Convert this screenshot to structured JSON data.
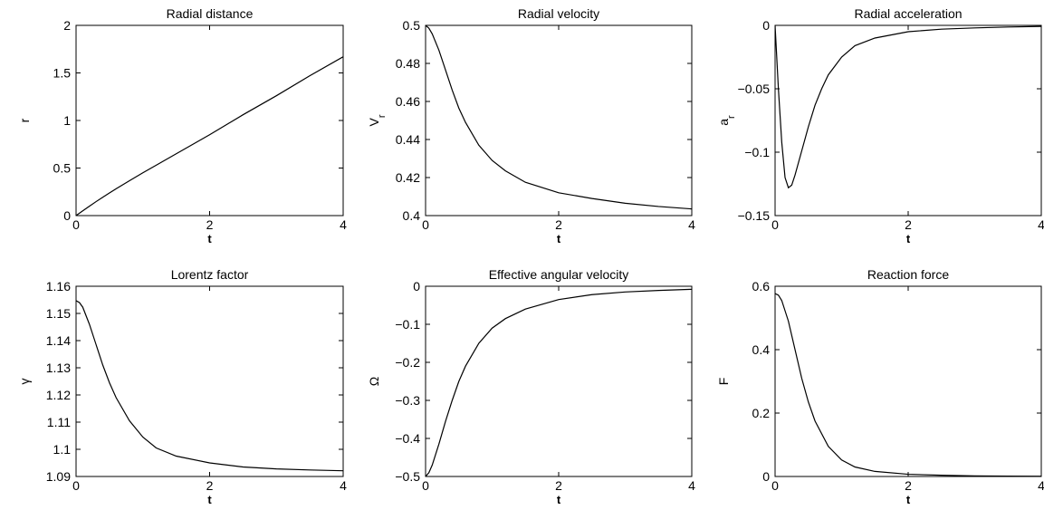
{
  "chart_data": [
    {
      "type": "line",
      "title": "Radial distance",
      "xlabel": "t",
      "ylabel": "r",
      "ylabel_sub": "",
      "xlim": [
        0,
        4
      ],
      "ylim": [
        0,
        2
      ],
      "xticks": [
        0,
        2,
        4
      ],
      "xtick_labels": [
        "0",
        "2",
        "4"
      ],
      "yticks": [
        0,
        0.5,
        1,
        1.5,
        2
      ],
      "ytick_labels": [
        "0",
        "0.5",
        "1",
        "1.5",
        "2"
      ],
      "grid": false,
      "series": [
        {
          "x": [
            0,
            0.1,
            0.2,
            0.3,
            0.4,
            0.5,
            0.6,
            0.8,
            1.0,
            1.2,
            1.5,
            2.0,
            2.5,
            3.0,
            3.5,
            4.0
          ],
          "y": [
            0,
            0.05,
            0.099,
            0.147,
            0.193,
            0.238,
            0.282,
            0.367,
            0.45,
            0.53,
            0.65,
            0.85,
            1.06,
            1.26,
            1.47,
            1.67
          ]
        }
      ]
    },
    {
      "type": "line",
      "title": "Radial velocity",
      "xlabel": "t",
      "ylabel": "V",
      "ylabel_sub": "r",
      "xlim": [
        0,
        4
      ],
      "ylim": [
        0.4,
        0.5
      ],
      "xticks": [
        0,
        2,
        4
      ],
      "xtick_labels": [
        "0",
        "2",
        "4"
      ],
      "yticks": [
        0.4,
        0.42,
        0.44,
        0.46,
        0.48,
        0.5
      ],
      "ytick_labels": [
        "0.4",
        "0.42",
        "0.44",
        "0.46",
        "0.48",
        "0.5"
      ],
      "grid": false,
      "series": [
        {
          "x": [
            0,
            0.05,
            0.1,
            0.2,
            0.3,
            0.4,
            0.5,
            0.6,
            0.8,
            1.0,
            1.2,
            1.5,
            2.0,
            2.5,
            3.0,
            3.5,
            4.0
          ],
          "y": [
            0.5,
            0.4985,
            0.4955,
            0.487,
            0.4765,
            0.466,
            0.4565,
            0.449,
            0.437,
            0.429,
            0.4235,
            0.4175,
            0.412,
            0.409,
            0.4065,
            0.4048,
            0.4035
          ]
        }
      ]
    },
    {
      "type": "line",
      "title": "Radial acceleration",
      "xlabel": "t",
      "ylabel": "a",
      "ylabel_sub": "r",
      "xlim": [
        0,
        4
      ],
      "ylim": [
        -0.15,
        0
      ],
      "xticks": [
        0,
        2,
        4
      ],
      "xtick_labels": [
        "0",
        "2",
        "4"
      ],
      "yticks": [
        -0.15,
        -0.1,
        -0.05,
        0
      ],
      "ytick_labels": [
        "−0.15",
        "−0.1",
        "−0.05",
        "0"
      ],
      "grid": false,
      "series": [
        {
          "x": [
            0,
            0.05,
            0.1,
            0.15,
            0.2,
            0.25,
            0.3,
            0.4,
            0.5,
            0.6,
            0.7,
            0.8,
            1.0,
            1.2,
            1.5,
            2.0,
            2.5,
            3.0,
            3.5,
            4.0
          ],
          "y": [
            0,
            -0.05,
            -0.092,
            -0.12,
            -0.128,
            -0.126,
            -0.118,
            -0.099,
            -0.08,
            -0.063,
            -0.05,
            -0.039,
            -0.025,
            -0.016,
            -0.01,
            -0.005,
            -0.003,
            -0.002,
            -0.0013,
            -0.0008
          ]
        }
      ]
    },
    {
      "type": "line",
      "title": "Lorentz factor",
      "xlabel": "t",
      "ylabel": "γ",
      "ylabel_sub": "",
      "xlim": [
        0,
        4
      ],
      "ylim": [
        1.09,
        1.16
      ],
      "xticks": [
        0,
        2,
        4
      ],
      "xtick_labels": [
        "0",
        "2",
        "4"
      ],
      "yticks": [
        1.09,
        1.1,
        1.11,
        1.12,
        1.13,
        1.14,
        1.15,
        1.16
      ],
      "ytick_labels": [
        "1.09",
        "1.1",
        "1.11",
        "1.12",
        "1.13",
        "1.14",
        "1.15",
        "1.16"
      ],
      "grid": false,
      "series": [
        {
          "x": [
            0,
            0.05,
            0.1,
            0.2,
            0.3,
            0.4,
            0.5,
            0.6,
            0.8,
            1.0,
            1.2,
            1.5,
            2.0,
            2.5,
            3.0,
            3.5,
            4.0
          ],
          "y": [
            1.1547,
            1.154,
            1.1523,
            1.146,
            1.1385,
            1.131,
            1.1245,
            1.119,
            1.1105,
            1.1045,
            1.1005,
            1.0975,
            1.095,
            1.0935,
            1.0928,
            1.0924,
            1.0921
          ]
        }
      ]
    },
    {
      "type": "line",
      "title": "Effective angular velocity",
      "xlabel": "t",
      "ylabel": "Ω",
      "ylabel_sub": "",
      "xlim": [
        0,
        4
      ],
      "ylim": [
        -0.5,
        0
      ],
      "xticks": [
        0,
        2,
        4
      ],
      "xtick_labels": [
        "0",
        "2",
        "4"
      ],
      "yticks": [
        -0.5,
        -0.4,
        -0.3,
        -0.2,
        -0.1,
        0
      ],
      "ytick_labels": [
        "−0.5",
        "−0.4",
        "−0.3",
        "−0.2",
        "−0.1",
        "0"
      ],
      "grid": false,
      "series": [
        {
          "x": [
            0,
            0.05,
            0.1,
            0.2,
            0.3,
            0.4,
            0.5,
            0.6,
            0.8,
            1.0,
            1.2,
            1.5,
            2.0,
            2.5,
            3.0,
            3.5,
            4.0
          ],
          "y": [
            -0.5,
            -0.49,
            -0.47,
            -0.415,
            -0.355,
            -0.3,
            -0.25,
            -0.21,
            -0.15,
            -0.11,
            -0.085,
            -0.06,
            -0.035,
            -0.022,
            -0.015,
            -0.011,
            -0.008
          ]
        }
      ]
    },
    {
      "type": "line",
      "title": "Reaction force",
      "xlabel": "t",
      "ylabel": "F",
      "ylabel_sub": "",
      "xlim": [
        0,
        4
      ],
      "ylim": [
        0,
        0.6
      ],
      "xticks": [
        0,
        2,
        4
      ],
      "xtick_labels": [
        "0",
        "2",
        "4"
      ],
      "yticks": [
        0,
        0.2,
        0.4,
        0.6
      ],
      "ytick_labels": [
        "0",
        "0.2",
        "0.4",
        "0.6"
      ],
      "grid": false,
      "series": [
        {
          "x": [
            0,
            0.05,
            0.1,
            0.2,
            0.3,
            0.4,
            0.5,
            0.6,
            0.8,
            1.0,
            1.2,
            1.5,
            2.0,
            2.5,
            3.0,
            3.5,
            4.0
          ],
          "y": [
            0.577,
            0.572,
            0.555,
            0.49,
            0.4,
            0.31,
            0.235,
            0.175,
            0.095,
            0.052,
            0.03,
            0.016,
            0.007,
            0.004,
            0.002,
            0.0012,
            0.0008
          ]
        }
      ]
    }
  ]
}
